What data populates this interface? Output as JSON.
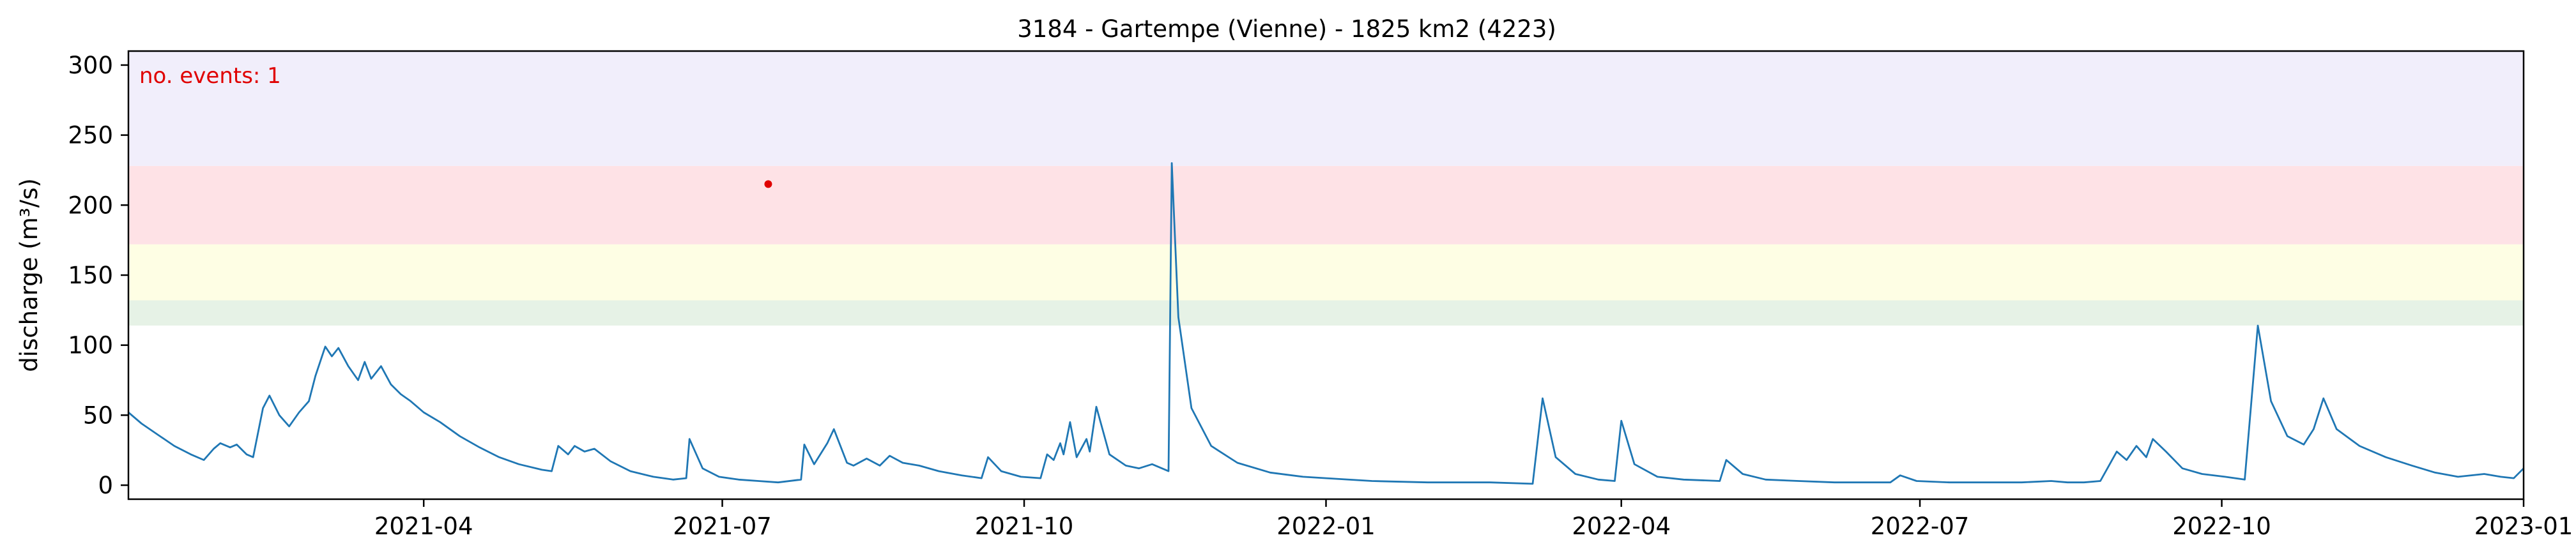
{
  "chart_data": {
    "type": "line",
    "title": "3184 - Gartempe (Vienne) - 1825 km2 (4223)",
    "xlabel": "",
    "ylabel": "discharge (m³/s)",
    "xlim": [
      "2021-01-01",
      "2023-01-01"
    ],
    "ylim": [
      -10,
      310
    ],
    "x_ticks": [
      "2021-04-01",
      "2021-07-01",
      "2021-10-01",
      "2022-01-01",
      "2022-04-01",
      "2022-07-01",
      "2022-10-01",
      "2023-01-01"
    ],
    "x_tick_labels": [
      "2021-04",
      "2021-07",
      "2021-10",
      "2022-01",
      "2022-04",
      "2022-07",
      "2022-10",
      "2023-01"
    ],
    "y_ticks": [
      0,
      50,
      100,
      150,
      200,
      250,
      300
    ],
    "y_tick_labels": [
      "0",
      "50",
      "100",
      "150",
      "200",
      "250",
      "300"
    ],
    "grid": false,
    "annotation": {
      "text": "no. events: 1",
      "color": "#e00000"
    },
    "threshold_bands": [
      {
        "from": 114,
        "to": 132,
        "color": "#e6f2e6"
      },
      {
        "from": 132,
        "to": 172,
        "color": "#fefee4"
      },
      {
        "from": 172,
        "to": 228,
        "color": "#fee2e6"
      },
      {
        "from": 228,
        "to": 310,
        "color": "#f1eefb"
      }
    ],
    "events": [
      {
        "x": "2021-07-15",
        "y": 215
      }
    ],
    "series": [
      {
        "color": "#1f77b4",
        "points": [
          [
            "2021-01-01",
            52
          ],
          [
            "2021-01-05",
            44
          ],
          [
            "2021-01-10",
            36
          ],
          [
            "2021-01-15",
            28
          ],
          [
            "2021-01-20",
            22
          ],
          [
            "2021-01-24",
            18
          ],
          [
            "2021-01-27",
            26
          ],
          [
            "2021-01-29",
            30
          ],
          [
            "2021-02-01",
            27
          ],
          [
            "2021-02-03",
            29
          ],
          [
            "2021-02-06",
            22
          ],
          [
            "2021-02-08",
            20
          ],
          [
            "2021-02-11",
            55
          ],
          [
            "2021-02-13",
            64
          ],
          [
            "2021-02-16",
            50
          ],
          [
            "2021-02-19",
            42
          ],
          [
            "2021-02-22",
            52
          ],
          [
            "2021-02-25",
            60
          ],
          [
            "2021-02-27",
            78
          ],
          [
            "2021-03-02",
            99
          ],
          [
            "2021-03-04",
            92
          ],
          [
            "2021-03-06",
            98
          ],
          [
            "2021-03-09",
            85
          ],
          [
            "2021-03-12",
            75
          ],
          [
            "2021-03-14",
            88
          ],
          [
            "2021-03-16",
            76
          ],
          [
            "2021-03-19",
            85
          ],
          [
            "2021-03-22",
            72
          ],
          [
            "2021-03-25",
            65
          ],
          [
            "2021-03-28",
            60
          ],
          [
            "2021-04-01",
            52
          ],
          [
            "2021-04-06",
            45
          ],
          [
            "2021-04-12",
            35
          ],
          [
            "2021-04-18",
            27
          ],
          [
            "2021-04-24",
            20
          ],
          [
            "2021-04-30",
            15
          ],
          [
            "2021-05-07",
            11
          ],
          [
            "2021-05-10",
            10
          ],
          [
            "2021-05-12",
            28
          ],
          [
            "2021-05-15",
            22
          ],
          [
            "2021-05-17",
            28
          ],
          [
            "2021-05-20",
            24
          ],
          [
            "2021-05-23",
            26
          ],
          [
            "2021-05-28",
            17
          ],
          [
            "2021-06-03",
            10
          ],
          [
            "2021-06-10",
            6
          ],
          [
            "2021-06-16",
            4
          ],
          [
            "2021-06-20",
            5
          ],
          [
            "2021-06-21",
            33
          ],
          [
            "2021-06-25",
            12
          ],
          [
            "2021-06-30",
            6
          ],
          [
            "2021-07-06",
            4
          ],
          [
            "2021-07-12",
            3
          ],
          [
            "2021-07-18",
            2
          ],
          [
            "2021-07-25",
            4
          ],
          [
            "2021-07-26",
            29
          ],
          [
            "2021-07-29",
            15
          ],
          [
            "2021-08-02",
            30
          ],
          [
            "2021-08-04",
            40
          ],
          [
            "2021-08-08",
            16
          ],
          [
            "2021-08-10",
            14
          ],
          [
            "2021-08-14",
            19
          ],
          [
            "2021-08-18",
            14
          ],
          [
            "2021-08-21",
            21
          ],
          [
            "2021-08-25",
            16
          ],
          [
            "2021-08-30",
            14
          ],
          [
            "2021-09-05",
            10
          ],
          [
            "2021-09-12",
            7
          ],
          [
            "2021-09-18",
            5
          ],
          [
            "2021-09-20",
            20
          ],
          [
            "2021-09-24",
            10
          ],
          [
            "2021-09-30",
            6
          ],
          [
            "2021-10-06",
            5
          ],
          [
            "2021-10-08",
            22
          ],
          [
            "2021-10-10",
            18
          ],
          [
            "2021-10-12",
            30
          ],
          [
            "2021-10-13",
            22
          ],
          [
            "2021-10-15",
            45
          ],
          [
            "2021-10-17",
            20
          ],
          [
            "2021-10-20",
            33
          ],
          [
            "2021-10-21",
            24
          ],
          [
            "2021-10-23",
            56
          ],
          [
            "2021-10-27",
            22
          ],
          [
            "2021-11-01",
            14
          ],
          [
            "2021-11-05",
            12
          ],
          [
            "2021-11-09",
            15
          ],
          [
            "2021-11-14",
            10
          ],
          [
            "2021-11-15",
            230
          ],
          [
            "2021-11-17",
            120
          ],
          [
            "2021-11-21",
            55
          ],
          [
            "2021-11-27",
            28
          ],
          [
            "2021-12-05",
            16
          ],
          [
            "2021-12-15",
            9
          ],
          [
            "2021-12-25",
            6
          ],
          [
            "2022-01-01",
            5
          ],
          [
            "2022-01-15",
            3
          ],
          [
            "2022-02-01",
            2
          ],
          [
            "2022-02-20",
            2
          ],
          [
            "2022-03-05",
            1
          ],
          [
            "2022-03-08",
            62
          ],
          [
            "2022-03-12",
            20
          ],
          [
            "2022-03-18",
            8
          ],
          [
            "2022-03-25",
            4
          ],
          [
            "2022-03-30",
            3
          ],
          [
            "2022-04-01",
            46
          ],
          [
            "2022-04-05",
            15
          ],
          [
            "2022-04-12",
            6
          ],
          [
            "2022-04-20",
            4
          ],
          [
            "2022-05-01",
            3
          ],
          [
            "2022-05-03",
            18
          ],
          [
            "2022-05-08",
            8
          ],
          [
            "2022-05-15",
            4
          ],
          [
            "2022-05-25",
            3
          ],
          [
            "2022-06-05",
            2
          ],
          [
            "2022-06-15",
            2
          ],
          [
            "2022-06-22",
            2
          ],
          [
            "2022-06-25",
            7
          ],
          [
            "2022-06-30",
            3
          ],
          [
            "2022-07-10",
            2
          ],
          [
            "2022-07-20",
            2
          ],
          [
            "2022-08-01",
            2
          ],
          [
            "2022-08-10",
            3
          ],
          [
            "2022-08-15",
            2
          ],
          [
            "2022-08-20",
            2
          ],
          [
            "2022-08-25",
            3
          ],
          [
            "2022-08-30",
            24
          ],
          [
            "2022-09-02",
            18
          ],
          [
            "2022-09-05",
            28
          ],
          [
            "2022-09-08",
            20
          ],
          [
            "2022-09-10",
            33
          ],
          [
            "2022-09-14",
            24
          ],
          [
            "2022-09-19",
            12
          ],
          [
            "2022-09-25",
            8
          ],
          [
            "2022-10-02",
            6
          ],
          [
            "2022-10-08",
            4
          ],
          [
            "2022-10-12",
            114
          ],
          [
            "2022-10-16",
            60
          ],
          [
            "2022-10-21",
            35
          ],
          [
            "2022-10-26",
            29
          ],
          [
            "2022-10-29",
            40
          ],
          [
            "2022-11-01",
            62
          ],
          [
            "2022-11-05",
            40
          ],
          [
            "2022-11-12",
            28
          ],
          [
            "2022-11-20",
            20
          ],
          [
            "2022-11-28",
            14
          ],
          [
            "2022-12-05",
            9
          ],
          [
            "2022-12-12",
            6
          ],
          [
            "2022-12-20",
            8
          ],
          [
            "2022-12-25",
            6
          ],
          [
            "2022-12-29",
            5
          ],
          [
            "2023-01-01",
            12
          ]
        ]
      }
    ]
  }
}
